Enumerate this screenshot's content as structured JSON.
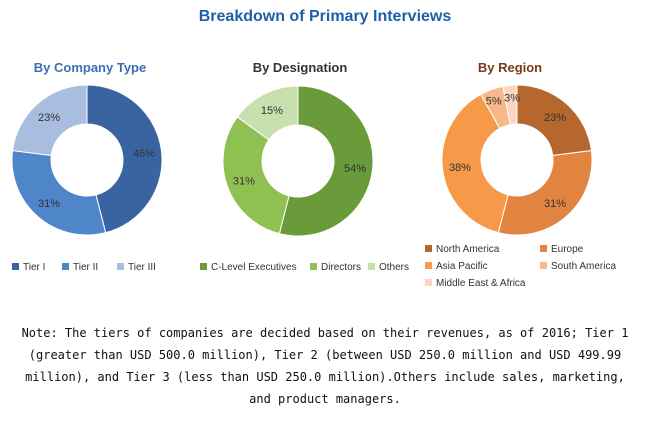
{
  "title": "Breakdown of Primary Interviews",
  "note": "Note: The tiers of companies are decided based on their revenues, as of 2016; Tier 1 (greater than USD 500.0 million), Tier 2 (between USD 250.0 million and USD 499.99 million), and Tier 3 (less than USD 250.0 million).Others include sales, marketing, and product managers.",
  "chart_data": [
    {
      "type": "pie",
      "title": "By Company Type",
      "title_color": "#3d6fb0",
      "categories": [
        "Tier I",
        "Tier II",
        "Tier III"
      ],
      "values": [
        46,
        31,
        23
      ],
      "labels": [
        "46%",
        "31%",
        "23%"
      ],
      "colors": [
        "#3a64a0",
        "#4e86c9",
        "#a9bedf"
      ],
      "legend": "bottom",
      "donut": true
    },
    {
      "type": "pie",
      "title": "By Designation",
      "title_color": "#333333",
      "categories": [
        "C-Level Executives",
        "Directors",
        "Others"
      ],
      "values": [
        54,
        31,
        15
      ],
      "labels": [
        "54%",
        "31%",
        "15%"
      ],
      "colors": [
        "#6a9b3a",
        "#8fc152",
        "#c8dfae"
      ],
      "legend": "bottom",
      "donut": true
    },
    {
      "type": "pie",
      "title": "By Region",
      "title_color": "#7a3a18",
      "categories": [
        "North America",
        "Europe",
        "Asia Pacific",
        "South America",
        "Middle East & Africa"
      ],
      "values": [
        23,
        31,
        38,
        5,
        3
      ],
      "labels": [
        "23%",
        "31%",
        "38%",
        "5%",
        "3%"
      ],
      "colors": [
        "#b5672d",
        "#e0843f",
        "#f69a4a",
        "#f8b88a",
        "#fbd5c0"
      ],
      "legend": "bottom",
      "donut": true
    }
  ]
}
